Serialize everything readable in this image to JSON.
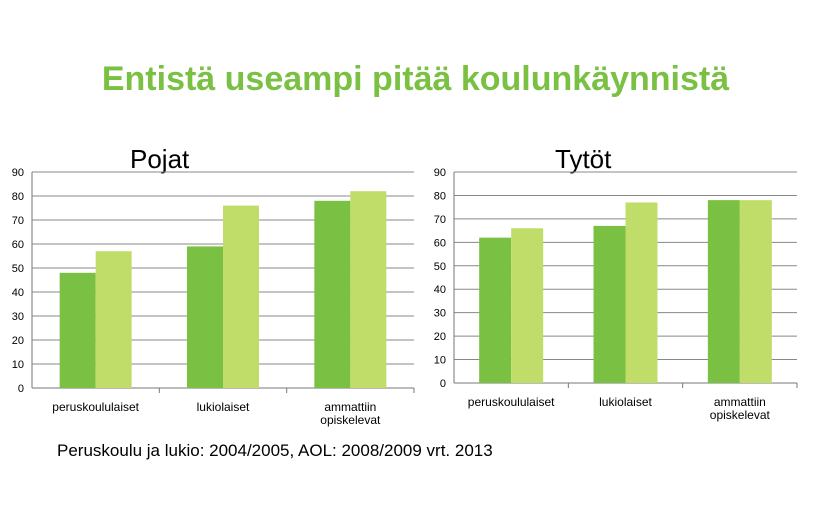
{
  "page": {
    "title": "Entistä useampi pitää koulunkäynnistä",
    "footnote": "Peruskoulu ja lukio: 2004/2005, AOL: 2008/2009 vrt. 2013"
  },
  "colors": {
    "title": "#7ac143",
    "series_dark": "#7ac143",
    "series_light": "#c0dd6a",
    "grid": "#888888"
  },
  "chart_data": [
    {
      "type": "bar",
      "title": "Pojat",
      "categories": [
        "peruskoululaiset",
        "lukiolaiset",
        "ammattiin opiskelevat"
      ],
      "series": [
        {
          "values": [
            48,
            59,
            78
          ]
        },
        {
          "values": [
            57,
            76,
            82
          ]
        }
      ],
      "ylim": [
        0,
        90
      ],
      "yticks": [
        0,
        10,
        20,
        30,
        40,
        50,
        60,
        70,
        80,
        90
      ],
      "grid": true
    },
    {
      "type": "bar",
      "title": "Tytöt",
      "categories": [
        "peruskoululaiset",
        "lukiolaiset",
        "ammattiin opiskelevat"
      ],
      "series": [
        {
          "values": [
            62,
            67,
            78
          ]
        },
        {
          "values": [
            66,
            77,
            78
          ]
        }
      ],
      "ylim": [
        0,
        90
      ],
      "yticks": [
        0,
        10,
        20,
        30,
        40,
        50,
        60,
        70,
        80,
        90
      ],
      "grid": true
    }
  ]
}
